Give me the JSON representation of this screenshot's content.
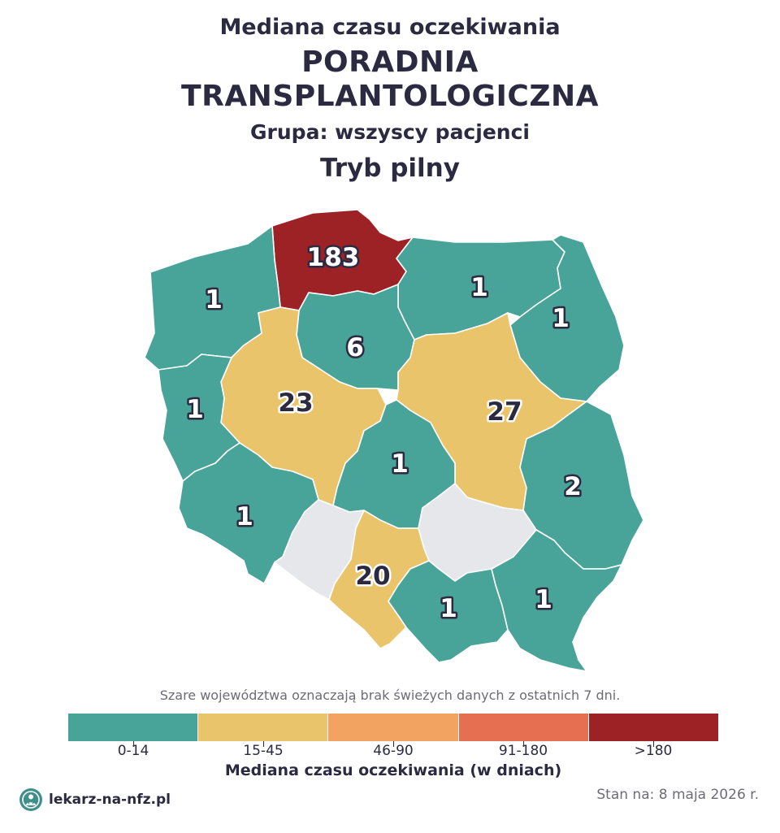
{
  "header": {
    "line1": "Mediana czasu oczekiwania",
    "line2a": "PORADNIA",
    "line2b": "TRANSPLANTOLOGICZNA",
    "group": "Grupa: wszyscy pacjenci",
    "mode": "Tryb pilny"
  },
  "colors": {
    "bin_0_14": "#48a398",
    "bin_15_45": "#e9c46a",
    "bin_46_90": "#f2a261",
    "bin_91_180": "#e76f51",
    "bin_gt_180": "#9d2226",
    "no_data": "#e6e7ea",
    "text": "#2b2a40"
  },
  "regions": [
    {
      "name": "pomorskie",
      "value": "183",
      "bin": "bin_gt_180"
    },
    {
      "name": "zachodniopomorskie",
      "value": "1",
      "bin": "bin_0_14"
    },
    {
      "name": "warminsko-mazurskie",
      "value": "1",
      "bin": "bin_0_14"
    },
    {
      "name": "podlaskie",
      "value": "1",
      "bin": "bin_0_14"
    },
    {
      "name": "kujawsko-pomorskie",
      "value": "6",
      "bin": "bin_0_14"
    },
    {
      "name": "wielkopolskie",
      "value": "23",
      "bin": "bin_15_45"
    },
    {
      "name": "mazowieckie",
      "value": "27",
      "bin": "bin_15_45"
    },
    {
      "name": "lubuskie",
      "value": "1",
      "bin": "bin_0_14"
    },
    {
      "name": "lodzkie",
      "value": "1",
      "bin": "bin_0_14"
    },
    {
      "name": "lubelskie",
      "value": "2",
      "bin": "bin_0_14"
    },
    {
      "name": "dolnoslaskie",
      "value": "1",
      "bin": "bin_0_14"
    },
    {
      "name": "opolskie",
      "value": "",
      "bin": "no_data"
    },
    {
      "name": "slaskie",
      "value": "20",
      "bin": "bin_15_45"
    },
    {
      "name": "swietokrzyskie",
      "value": "",
      "bin": "no_data"
    },
    {
      "name": "malopolskie",
      "value": "1",
      "bin": "bin_0_14"
    },
    {
      "name": "podkarpackie",
      "value": "1",
      "bin": "bin_0_14"
    }
  ],
  "note": "Szare województwa oznaczają brak świeżych danych z ostatnich 7 dni.",
  "legend": {
    "bins": [
      {
        "label": "0-14",
        "color": "#48a398"
      },
      {
        "label": "15-45",
        "color": "#e9c46a"
      },
      {
        "label": "46-90",
        "color": "#f2a261"
      },
      {
        "label": "91-180",
        "color": "#e76f51"
      },
      {
        "label": ">180",
        "color": "#9d2226"
      }
    ],
    "title": "Mediana czasu oczekiwania (w dniach)"
  },
  "footer": {
    "brand": "lekarz-na-nfz.pl",
    "logo_icon": "doctor-icon",
    "stamp": "Stan na: 8 maja 2026 r."
  }
}
